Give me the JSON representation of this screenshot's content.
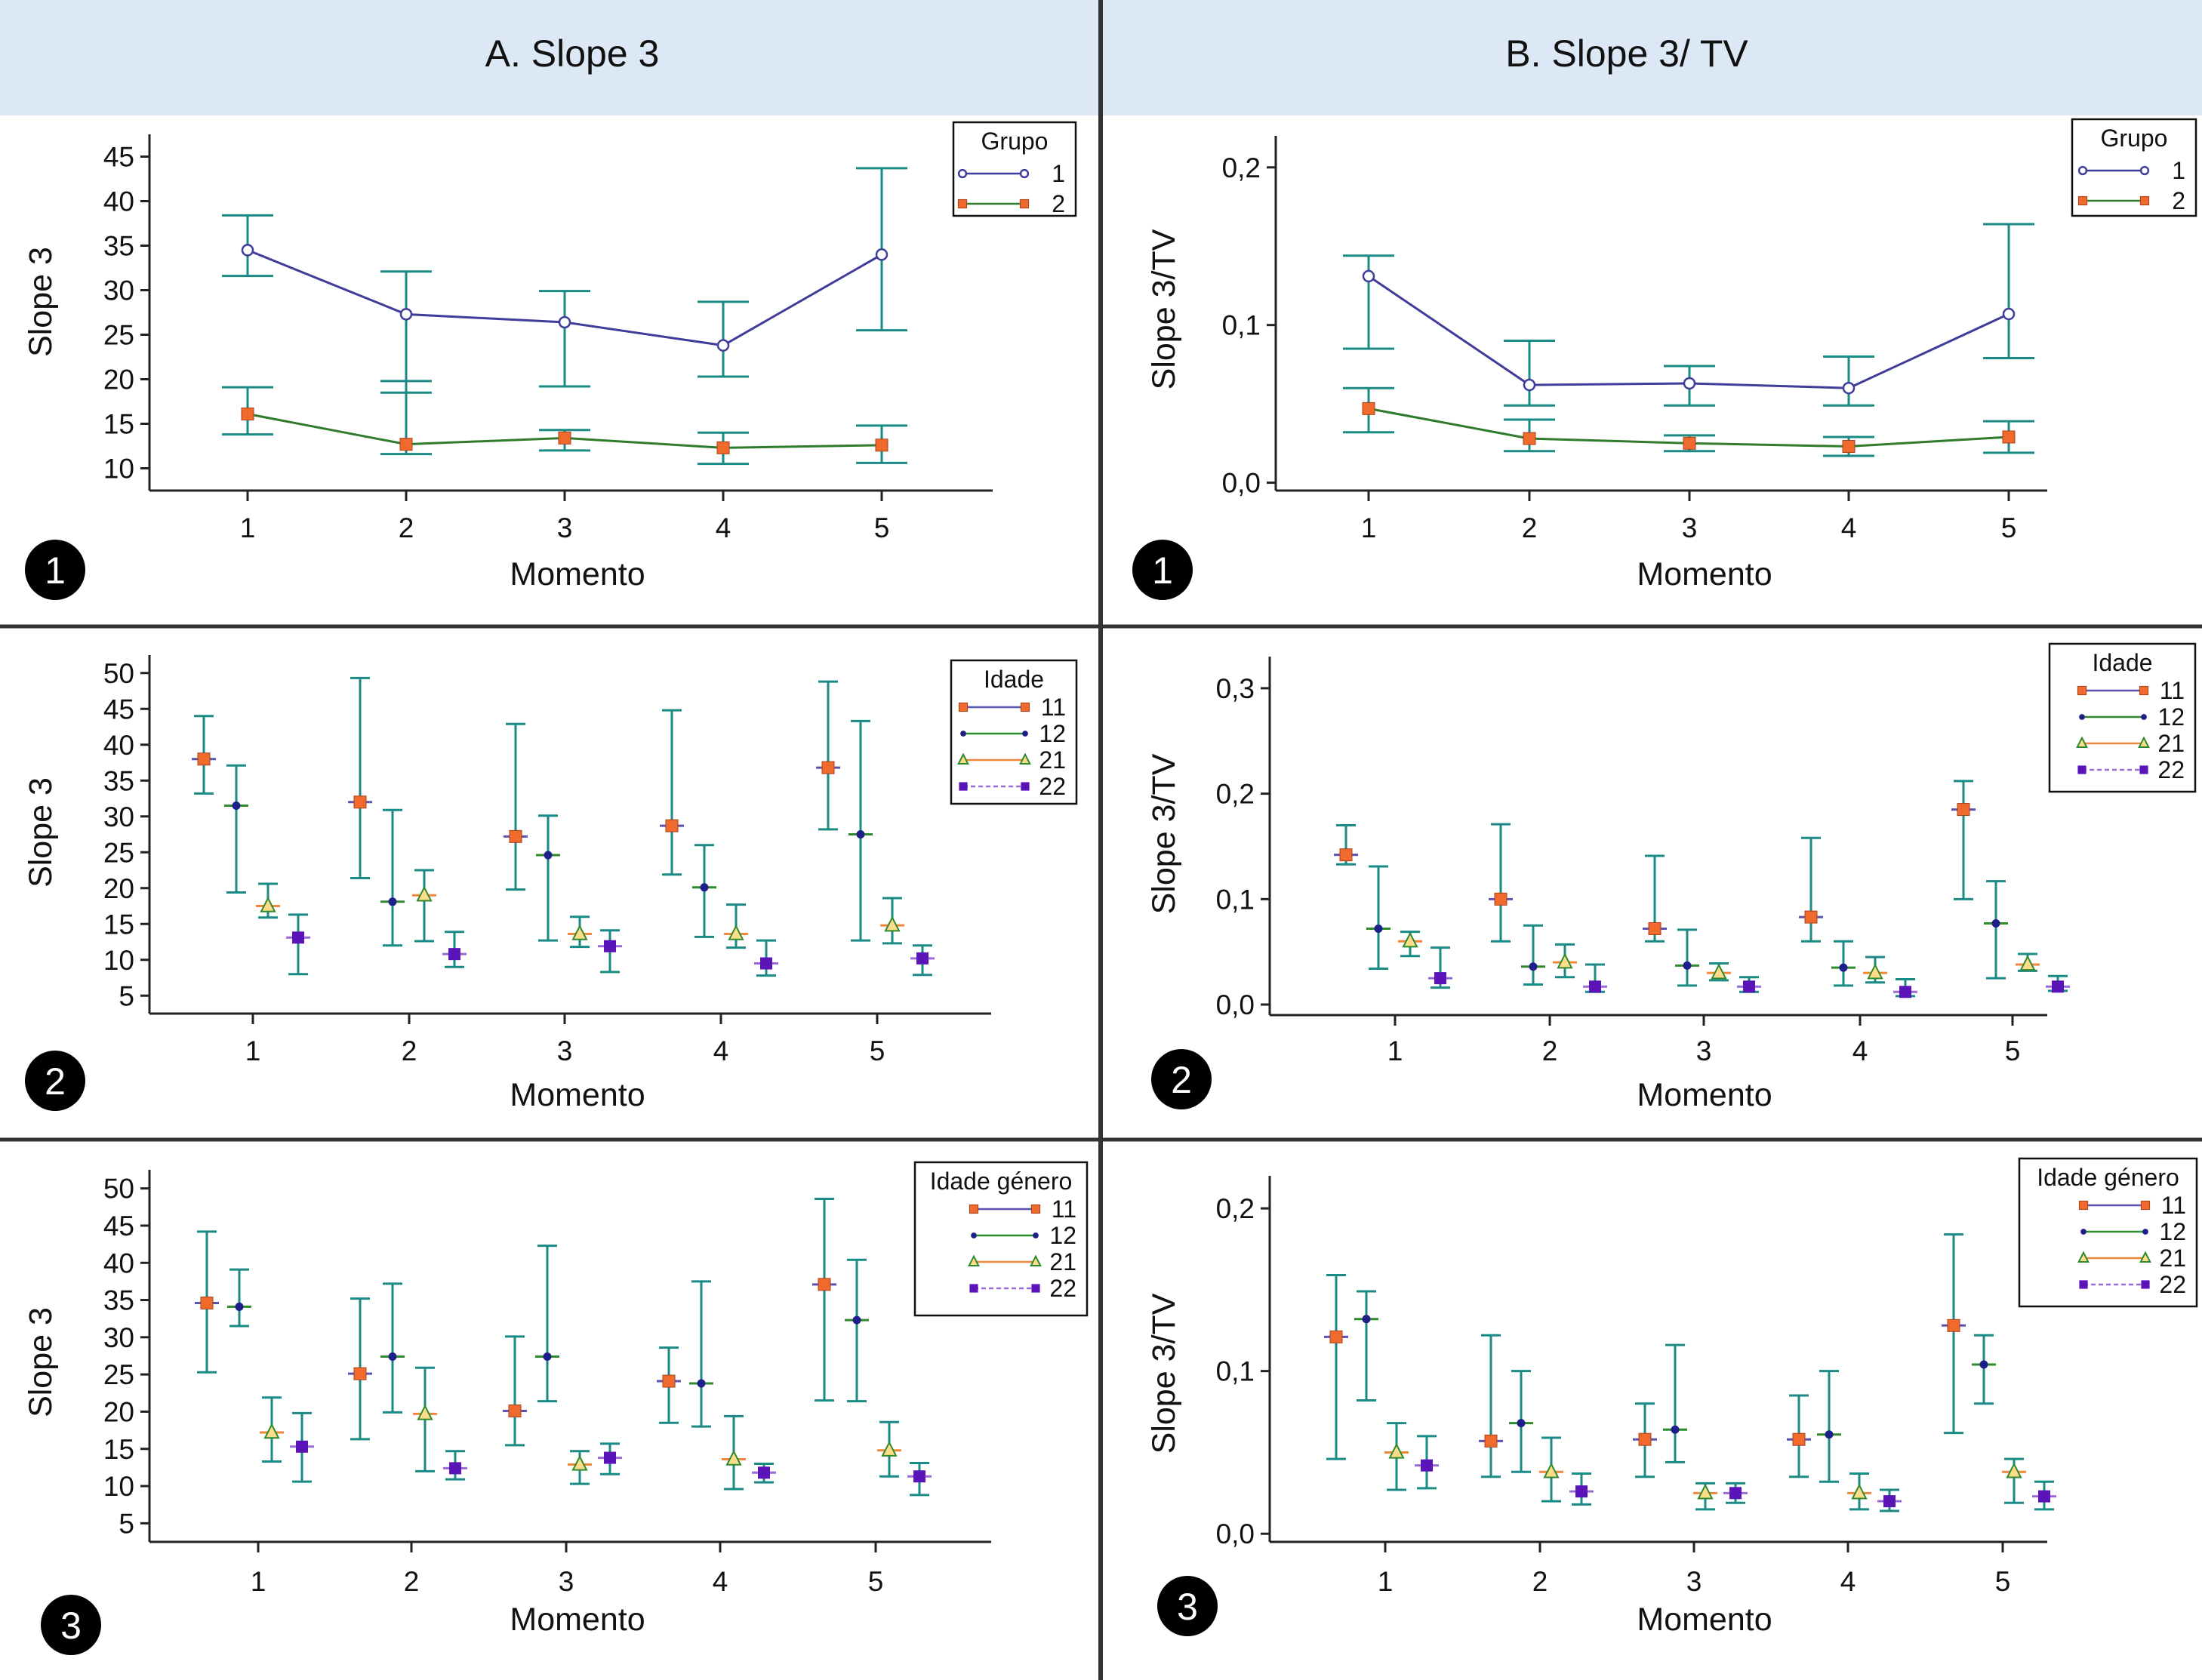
{
  "columns": [
    {
      "title": "A. Slope 3"
    },
    {
      "title": "B. Slope 3/ TV"
    }
  ],
  "colors": {
    "header_bg": "#dce8f5",
    "grid_line": "#333333",
    "errorbar": "#1a8a84",
    "line_g1": "#3f3c9a",
    "line_g2": "#2f7a2b",
    "marker_orange": "#ef6a2c",
    "marker_navy": "#1f1f8a",
    "marker_purple": "#5a14b8",
    "line_11": "#5a52b0",
    "line_12": "#2f8a2b",
    "line_21": "#f0883a",
    "line_22": "#9a6ad8",
    "triangle_edge": "#2e8a2e",
    "triangle_fill": "#ffdc8a",
    "badge_bg": "#000000"
  },
  "chart_data": [
    {
      "id": "A1",
      "type": "line",
      "badge": "1",
      "xlabel": "Momento",
      "ylabel": "Slope 3",
      "x": [
        1,
        2,
        3,
        4,
        5
      ],
      "ylim": [
        7.5,
        47.5
      ],
      "yticks": [
        "10",
        "15",
        "20",
        "25",
        "30",
        "35",
        "40",
        "45"
      ],
      "ytick_values": [
        10,
        15,
        20,
        25,
        30,
        35,
        40,
        45
      ],
      "legend": {
        "title": "Grupo",
        "position": "top-right"
      },
      "series": [
        {
          "name": "1",
          "marker": "circle",
          "values": [
            34.5,
            27.3,
            26.4,
            23.8,
            34.0
          ],
          "lower": [
            31.6,
            18.5,
            19.2,
            20.3,
            25.5
          ],
          "upper": [
            38.4,
            32.1,
            29.9,
            28.7,
            43.7
          ]
        },
        {
          "name": "2",
          "marker": "square",
          "values": [
            16.1,
            12.7,
            13.4,
            12.3,
            12.6
          ],
          "lower": [
            13.8,
            11.6,
            12.0,
            10.5,
            10.6
          ],
          "upper": [
            19.1,
            19.8,
            14.3,
            14.0,
            14.8
          ]
        }
      ]
    },
    {
      "id": "B1",
      "type": "line",
      "badge": "1",
      "xlabel": "Momento",
      "ylabel": "Slope 3/TV",
      "x": [
        1,
        2,
        3,
        4,
        5
      ],
      "ylim": [
        -0.005,
        0.22
      ],
      "yticks": [
        "0,0",
        "0,1",
        "0,2"
      ],
      "ytick_values": [
        0,
        0.1,
        0.2
      ],
      "legend": {
        "title": "Grupo",
        "position": "top-right"
      },
      "series": [
        {
          "name": "1",
          "marker": "circle",
          "values": [
            0.131,
            0.062,
            0.063,
            0.06,
            0.107
          ],
          "lower": [
            0.085,
            0.049,
            0.049,
            0.049,
            0.079
          ],
          "upper": [
            0.144,
            0.09,
            0.074,
            0.08,
            0.164
          ]
        },
        {
          "name": "2",
          "marker": "square",
          "values": [
            0.047,
            0.028,
            0.025,
            0.023,
            0.029
          ],
          "lower": [
            0.032,
            0.02,
            0.02,
            0.017,
            0.019
          ],
          "upper": [
            0.06,
            0.04,
            0.03,
            0.029,
            0.039
          ]
        }
      ]
    },
    {
      "id": "A2",
      "type": "scatter",
      "badge": "2",
      "xlabel": "Momento",
      "ylabel": "Slope 3",
      "x": [
        1,
        2,
        3,
        4,
        5
      ],
      "ylim": [
        2.5,
        52.5
      ],
      "yticks": [
        "5",
        "10",
        "15",
        "20",
        "25",
        "30",
        "35",
        "40",
        "45",
        "50"
      ],
      "ytick_values": [
        5,
        10,
        15,
        20,
        25,
        30,
        35,
        40,
        45,
        50
      ],
      "legend": {
        "title": "Idade",
        "position": "top-right"
      },
      "series": [
        {
          "name": "11",
          "marker": "square",
          "values": [
            38.0,
            32.0,
            27.2,
            28.7,
            36.8
          ],
          "lower": [
            33.2,
            21.4,
            19.8,
            21.9,
            28.2
          ],
          "upper": [
            44.0,
            49.3,
            42.9,
            44.8,
            48.8
          ]
        },
        {
          "name": "12",
          "marker": "dot",
          "values": [
            31.5,
            18.1,
            24.6,
            20.1,
            27.5
          ],
          "lower": [
            19.4,
            12.0,
            12.7,
            13.2,
            12.7
          ],
          "upper": [
            37.1,
            30.9,
            30.1,
            26.0,
            43.3
          ]
        },
        {
          "name": "21",
          "marker": "triangle",
          "values": [
            17.5,
            19.0,
            13.6,
            13.6,
            14.8
          ],
          "lower": [
            15.9,
            12.6,
            11.8,
            11.7,
            12.3
          ],
          "upper": [
            20.6,
            22.5,
            16.0,
            17.7,
            18.6
          ]
        },
        {
          "name": "22",
          "marker": "purple-square",
          "values": [
            13.1,
            10.8,
            11.9,
            9.5,
            10.2
          ],
          "lower": [
            8.0,
            9.0,
            8.3,
            7.8,
            7.9
          ],
          "upper": [
            16.3,
            13.9,
            14.1,
            12.7,
            12.0
          ]
        }
      ]
    },
    {
      "id": "B2",
      "type": "scatter",
      "badge": "2",
      "xlabel": "Momento",
      "ylabel": "Slope 3/TV",
      "x": [
        1,
        2,
        3,
        4,
        5
      ],
      "ylim": [
        -0.01,
        0.33
      ],
      "yticks": [
        "0,0",
        "0,1",
        "0,2",
        "0,3"
      ],
      "ytick_values": [
        0,
        0.1,
        0.2,
        0.3
      ],
      "legend": {
        "title": "Idade",
        "position": "top-right"
      },
      "series": [
        {
          "name": "11",
          "marker": "square",
          "values": [
            0.142,
            0.1,
            0.072,
            0.083,
            0.185
          ],
          "lower": [
            0.133,
            0.06,
            0.06,
            0.06,
            0.1
          ],
          "upper": [
            0.17,
            0.171,
            0.141,
            0.158,
            0.212
          ]
        },
        {
          "name": "12",
          "marker": "dot",
          "values": [
            0.072,
            0.036,
            0.037,
            0.035,
            0.077
          ],
          "lower": [
            0.034,
            0.019,
            0.018,
            0.018,
            0.025
          ],
          "upper": [
            0.131,
            0.075,
            0.071,
            0.06,
            0.117
          ]
        },
        {
          "name": "21",
          "marker": "triangle",
          "values": [
            0.06,
            0.04,
            0.03,
            0.03,
            0.038
          ],
          "lower": [
            0.046,
            0.026,
            0.023,
            0.021,
            0.032
          ],
          "upper": [
            0.069,
            0.057,
            0.039,
            0.045,
            0.048
          ]
        },
        {
          "name": "22",
          "marker": "purple-square",
          "values": [
            0.025,
            0.017,
            0.017,
            0.012,
            0.017
          ],
          "lower": [
            0.016,
            0.012,
            0.012,
            0.008,
            0.013
          ],
          "upper": [
            0.054,
            0.038,
            0.026,
            0.024,
            0.027
          ]
        }
      ]
    },
    {
      "id": "A3",
      "type": "scatter",
      "badge": "3",
      "xlabel": "Momento",
      "ylabel": "Slope 3",
      "x": [
        1,
        2,
        3,
        4,
        5
      ],
      "ylim": [
        2.5,
        52.5
      ],
      "yticks": [
        "5",
        "10",
        "15",
        "20",
        "25",
        "30",
        "35",
        "40",
        "45",
        "50"
      ],
      "ytick_values": [
        5,
        10,
        15,
        20,
        25,
        30,
        35,
        40,
        45,
        50
      ],
      "legend": {
        "title": "Idade género",
        "position": "top-right"
      },
      "series": [
        {
          "name": "11",
          "marker": "square",
          "values": [
            34.6,
            25.1,
            20.1,
            24.1,
            37.1
          ],
          "lower": [
            25.3,
            16.3,
            15.5,
            18.5,
            21.5
          ],
          "upper": [
            44.2,
            35.2,
            30.1,
            28.6,
            48.6
          ]
        },
        {
          "name": "12",
          "marker": "dot",
          "values": [
            34.1,
            27.4,
            27.4,
            23.8,
            32.3
          ],
          "lower": [
            31.5,
            19.9,
            21.4,
            18.0,
            21.4
          ],
          "upper": [
            39.1,
            37.2,
            42.3,
            37.5,
            40.4
          ]
        },
        {
          "name": "21",
          "marker": "triangle",
          "values": [
            17.2,
            19.7,
            12.9,
            13.6,
            14.8
          ],
          "lower": [
            13.3,
            12.0,
            10.3,
            9.6,
            11.3
          ],
          "upper": [
            21.9,
            25.9,
            14.7,
            19.4,
            18.6
          ]
        },
        {
          "name": "22",
          "marker": "purple-square",
          "values": [
            15.3,
            12.4,
            13.8,
            11.8,
            11.3
          ],
          "lower": [
            10.6,
            10.9,
            11.6,
            10.5,
            8.8
          ],
          "upper": [
            19.8,
            14.7,
            15.7,
            13.0,
            13.1
          ]
        }
      ]
    },
    {
      "id": "B3",
      "type": "scatter",
      "badge": "3",
      "xlabel": "Momento",
      "ylabel": "Slope 3/TV",
      "x": [
        1,
        2,
        3,
        4,
        5
      ],
      "ylim": [
        -0.005,
        0.22
      ],
      "yticks": [
        "0,0",
        "0,1",
        "0,2"
      ],
      "ytick_values": [
        0,
        0.1,
        0.2
      ],
      "legend": {
        "title": "Idade género",
        "position": "top-right"
      },
      "series": [
        {
          "name": "11",
          "marker": "square",
          "values": [
            0.121,
            0.057,
            0.058,
            0.058,
            0.128
          ],
          "lower": [
            0.046,
            0.035,
            0.035,
            0.035,
            0.062
          ],
          "upper": [
            0.159,
            0.122,
            0.08,
            0.085,
            0.184
          ]
        },
        {
          "name": "12",
          "marker": "dot",
          "values": [
            0.132,
            0.068,
            0.064,
            0.061,
            0.104
          ],
          "lower": [
            0.082,
            0.038,
            0.044,
            0.032,
            0.08
          ],
          "upper": [
            0.149,
            0.1,
            0.116,
            0.1,
            0.122
          ]
        },
        {
          "name": "21",
          "marker": "triangle",
          "values": [
            0.05,
            0.038,
            0.025,
            0.025,
            0.038
          ],
          "lower": [
            0.027,
            0.02,
            0.015,
            0.015,
            0.019
          ],
          "upper": [
            0.068,
            0.059,
            0.031,
            0.037,
            0.046
          ]
        },
        {
          "name": "22",
          "marker": "purple-square",
          "values": [
            0.042,
            0.026,
            0.025,
            0.02,
            0.023
          ],
          "lower": [
            0.028,
            0.018,
            0.019,
            0.014,
            0.015
          ],
          "upper": [
            0.06,
            0.037,
            0.031,
            0.027,
            0.032
          ]
        }
      ]
    }
  ]
}
